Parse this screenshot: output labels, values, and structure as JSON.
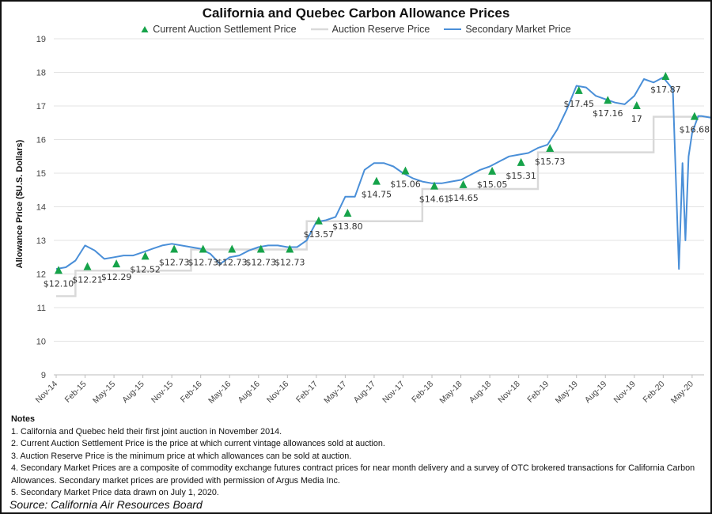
{
  "chart_data": {
    "type": "line",
    "title": "California and Quebec Carbon Allowance Prices",
    "ylabel": "Allowance Price ($U.S. Dollars)",
    "xlabel": "",
    "ylim": [
      9,
      19
    ],
    "yticks": [
      9,
      10,
      11,
      12,
      13,
      14,
      15,
      16,
      17,
      18,
      19
    ],
    "xticks": [
      "Nov-14",
      "Feb-15",
      "May-15",
      "Aug-15",
      "Nov-15",
      "Feb-16",
      "May-16",
      "Aug-16",
      "Nov-16",
      "Feb-17",
      "May-17",
      "Aug-17",
      "Nov-17",
      "Feb-18",
      "May-18",
      "Aug-18",
      "Nov-18",
      "Feb-19",
      "May-19",
      "Aug-19",
      "Nov-19",
      "Feb-20",
      "May-20"
    ],
    "grid": "horizontal",
    "legend_placement": "top",
    "colors": {
      "auction": "#16a34a",
      "reserve": "#d9d9d9",
      "secondary": "#4a8fd8"
    },
    "series": [
      {
        "name": "Current Auction Settlement Price",
        "style": "triangle-markers",
        "x": [
          "2014-11",
          "2015-02",
          "2015-05",
          "2015-08",
          "2015-11",
          "2016-02",
          "2016-05",
          "2016-08",
          "2016-11",
          "2017-02",
          "2017-05",
          "2017-08",
          "2017-11",
          "2018-02",
          "2018-05",
          "2018-08",
          "2018-11",
          "2019-02",
          "2019-05",
          "2019-08",
          "2019-11",
          "2020-02",
          "2020-05"
        ],
        "values": [
          12.1,
          12.21,
          12.29,
          12.52,
          12.73,
          12.73,
          12.73,
          12.73,
          12.73,
          13.57,
          13.8,
          14.75,
          15.06,
          14.61,
          14.65,
          15.05,
          15.31,
          15.73,
          17.45,
          17.16,
          17,
          17.87,
          16.68
        ],
        "labels": [
          "$12.10",
          "$12.21",
          "$12.29",
          "$12.52",
          "$12.73",
          "$12.73",
          "$12.73",
          "$12.73",
          "$12.73",
          "$13.57",
          "$13.80",
          "$14.75",
          "$15.06",
          "$14.61",
          "$14.65",
          "$15.05",
          "$15.31",
          "$15.73",
          "$17.45",
          "$17.16",
          "17",
          "$17.87",
          "$16.68"
        ]
      },
      {
        "name": "Auction Reserve Price",
        "style": "step",
        "x": [
          "2014-11",
          "2015-01",
          "2016-01",
          "2017-01",
          "2018-01",
          "2019-01",
          "2020-01",
          "2020-07"
        ],
        "values": [
          11.34,
          12.1,
          12.73,
          13.57,
          14.53,
          15.62,
          16.68,
          16.68
        ]
      },
      {
        "name": "Secondary Market Price",
        "style": "line",
        "x": [
          "2014-11",
          "2014-12",
          "2015-01",
          "2015-02",
          "2015-03",
          "2015-04",
          "2015-05",
          "2015-06",
          "2015-07",
          "2015-08",
          "2015-09",
          "2015-10",
          "2015-11",
          "2015-12",
          "2016-01",
          "2016-02",
          "2016-03",
          "2016-04",
          "2016-05",
          "2016-06",
          "2016-07",
          "2016-08",
          "2016-09",
          "2016-10",
          "2016-11",
          "2016-12",
          "2017-01",
          "2017-02",
          "2017-03",
          "2017-04",
          "2017-05",
          "2017-06",
          "2017-07",
          "2017-08",
          "2017-09",
          "2017-10",
          "2017-11",
          "2017-12",
          "2018-01",
          "2018-02",
          "2018-03",
          "2018-04",
          "2018-05",
          "2018-06",
          "2018-07",
          "2018-08",
          "2018-09",
          "2018-10",
          "2018-11",
          "2018-12",
          "2019-01",
          "2019-02",
          "2019-03",
          "2019-04",
          "2019-05",
          "2019-06",
          "2019-07",
          "2019-08",
          "2019-09",
          "2019-10",
          "2019-11",
          "2019-12",
          "2020-01",
          "2020-02",
          "2020-03",
          "2020-03-20",
          "2020-04",
          "2020-04-10",
          "2020-04-20",
          "2020-05",
          "2020-05-20",
          "2020-06",
          "2020-06-30"
        ],
        "values": [
          12.15,
          12.2,
          12.4,
          12.85,
          12.7,
          12.45,
          12.5,
          12.55,
          12.55,
          12.65,
          12.75,
          12.85,
          12.9,
          12.85,
          12.8,
          12.75,
          12.6,
          12.3,
          12.5,
          12.55,
          12.7,
          12.8,
          12.85,
          12.85,
          12.8,
          12.8,
          13.0,
          13.55,
          13.6,
          13.7,
          14.3,
          14.3,
          15.1,
          15.3,
          15.3,
          15.2,
          15.0,
          14.85,
          14.75,
          14.7,
          14.7,
          14.75,
          14.8,
          14.95,
          15.1,
          15.2,
          15.35,
          15.5,
          15.55,
          15.6,
          15.75,
          15.85,
          16.3,
          16.9,
          17.6,
          17.55,
          17.3,
          17.2,
          17.1,
          17.05,
          17.3,
          17.8,
          17.7,
          17.85,
          17.5,
          12.15,
          15.3,
          13.0,
          15.5,
          16.2,
          16.7,
          16.7,
          16.65
        ]
      }
    ]
  },
  "notes": {
    "heading": "Notes",
    "items": [
      "1. California and Quebec held their first joint auction in November 2014.",
      "2. Current Auction Settlement Price is the price at which current vintage allowances sold at auction.",
      "3. Auction Reserve Price is the minimum price at which allowances can be sold at auction.",
      "4. Secondary Market Prices are a composite of commodity exchange futures contract prices for near month delivery and a survey of OTC brokered transactions for California Carbon Allowances. Secondary market prices are provided with permission of Argus Media Inc.",
      "5. Secondary Market Price data drawn on July 1, 2020."
    ]
  },
  "source": "Source: California Air Resources Board"
}
